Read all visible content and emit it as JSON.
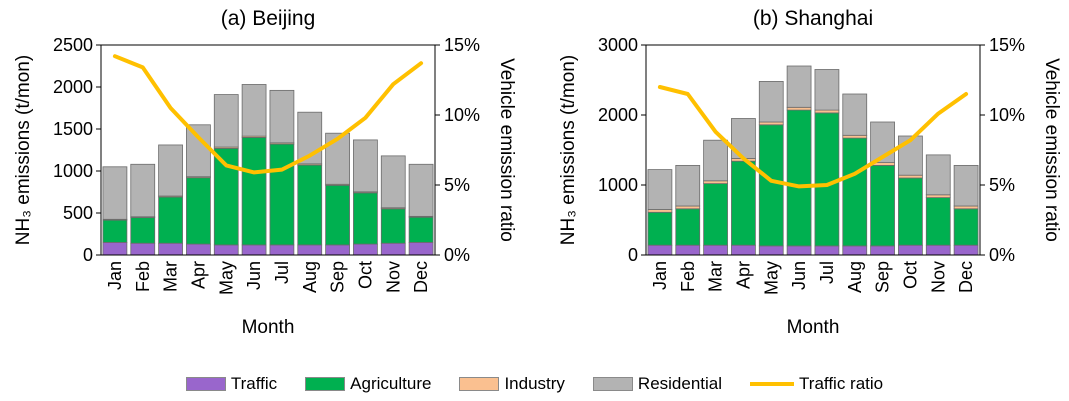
{
  "chart_data": [
    {
      "type": "bar",
      "stacked": true,
      "title": "(a) Beijing",
      "xlabel": "Month",
      "ylabel_left": "NH₃ emissions (t/mon)",
      "ylabel_right": "Vehicle emission ratio",
      "categories": [
        "Jan",
        "Feb",
        "Mar",
        "Apr",
        "May",
        "Jun",
        "Jul",
        "Aug",
        "Sep",
        "Oct",
        "Nov",
        "Dec"
      ],
      "ylim": [
        0,
        2500
      ],
      "yticks": [
        "0",
        "500",
        "1000",
        "1500",
        "2000",
        "2500"
      ],
      "ylim_right": [
        0,
        15
      ],
      "yticks_right": [
        "0%",
        "5%",
        "10%",
        "15%"
      ],
      "series": [
        {
          "name": "Traffic",
          "values": [
            150,
            140,
            140,
            130,
            120,
            120,
            120,
            120,
            120,
            130,
            140,
            150
          ]
        },
        {
          "name": "Agriculture",
          "values": [
            265,
            305,
            550,
            790,
            1150,
            1280,
            1200,
            950,
            710,
            610,
            410,
            300
          ]
        },
        {
          "name": "Industry",
          "values": [
            10,
            10,
            12,
            12,
            15,
            15,
            15,
            15,
            12,
            12,
            12,
            10
          ]
        },
        {
          "name": "Residential",
          "values": [
            625,
            625,
            608,
            618,
            625,
            615,
            625,
            615,
            608,
            618,
            618,
            620
          ]
        }
      ],
      "line": {
        "name": "Traffic ratio",
        "values": [
          14.2,
          13.4,
          10.5,
          8.4,
          6.4,
          5.9,
          6.1,
          7.1,
          8.3,
          9.8,
          12.2,
          13.7
        ]
      }
    },
    {
      "type": "bar",
      "stacked": true,
      "title": "(b) Shanghai",
      "xlabel": "Month",
      "ylabel_left": "NH₃ emissions (t/mon)",
      "ylabel_right": "Vehicle emission ratio",
      "categories": [
        "Jan",
        "Feb",
        "Mar",
        "Apr",
        "May",
        "Jun",
        "Jul",
        "Aug",
        "Sep",
        "Oct",
        "Nov",
        "Dec"
      ],
      "ylim": [
        0,
        3000
      ],
      "yticks": [
        "0",
        "1000",
        "2000",
        "3000"
      ],
      "ylim_right": [
        0,
        15
      ],
      "yticks_right": [
        "0%",
        "5%",
        "10%",
        "15%"
      ],
      "series": [
        {
          "name": "Traffic",
          "values": [
            140,
            140,
            140,
            140,
            130,
            130,
            130,
            130,
            130,
            140,
            140,
            140
          ]
        },
        {
          "name": "Agriculture",
          "values": [
            470,
            520,
            880,
            1200,
            1730,
            1940,
            1900,
            1540,
            1150,
            960,
            680,
            520
          ]
        },
        {
          "name": "Industry",
          "values": [
            40,
            40,
            40,
            40,
            40,
            40,
            40,
            40,
            40,
            40,
            40,
            40
          ]
        },
        {
          "name": "Residential",
          "values": [
            570,
            580,
            580,
            570,
            580,
            590,
            580,
            590,
            580,
            560,
            570,
            580
          ]
        }
      ],
      "line": {
        "name": "Traffic ratio",
        "values": [
          12.0,
          11.5,
          8.8,
          6.9,
          5.3,
          4.9,
          5.0,
          5.8,
          7.0,
          8.2,
          10.1,
          11.5
        ]
      }
    }
  ],
  "legend": [
    {
      "label": "Traffic",
      "color": "#9966cc",
      "kind": "box"
    },
    {
      "label": "Agriculture",
      "color": "#00b050",
      "kind": "box"
    },
    {
      "label": "Industry",
      "color": "#fac090",
      "kind": "box"
    },
    {
      "label": "Residential",
      "color": "#b3b3b3",
      "kind": "box"
    },
    {
      "label": "Traffic ratio",
      "color": "#ffc000",
      "kind": "line"
    }
  ],
  "colors": {
    "Traffic": "#9966cc",
    "Agriculture": "#00b050",
    "Industry": "#fac090",
    "Residential": "#b3b3b3",
    "line": "#ffc000"
  }
}
